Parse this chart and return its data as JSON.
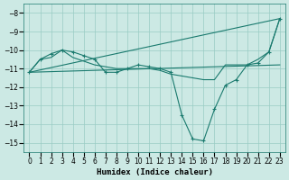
{
  "xlabel": "Humidex (Indice chaleur)",
  "ylabel": "",
  "xlim": [
    -0.5,
    23.5
  ],
  "ylim": [
    -15.5,
    -7.5
  ],
  "yticks": [
    -15,
    -14,
    -13,
    -12,
    -11,
    -10,
    -9,
    -8
  ],
  "xticks": [
    0,
    1,
    2,
    3,
    4,
    5,
    6,
    7,
    8,
    9,
    10,
    11,
    12,
    13,
    14,
    15,
    16,
    17,
    18,
    19,
    20,
    21,
    22,
    23
  ],
  "bg_color": "#cce9e4",
  "line_color": "#1a7a6e",
  "grid_color": "#99ccc4",
  "lines": [
    {
      "x": [
        0,
        1,
        2,
        3,
        4,
        5,
        6,
        7,
        8,
        9,
        10,
        11,
        12,
        13,
        14,
        15,
        16,
        17,
        18,
        19,
        20,
        21,
        22,
        23
      ],
      "y": [
        -11.2,
        -10.5,
        -10.2,
        -10.0,
        -10.1,
        -10.3,
        -10.5,
        -11.2,
        -11.2,
        -11.0,
        -10.8,
        -10.9,
        -11.0,
        -11.2,
        -13.5,
        -14.8,
        -14.9,
        -13.2,
        -11.9,
        -11.6,
        -10.8,
        -10.7,
        -10.1,
        -8.3
      ],
      "marker": true,
      "markersize": 2.5
    },
    {
      "x": [
        0,
        23
      ],
      "y": [
        -11.2,
        -8.3
      ],
      "marker": false,
      "markersize": 0
    },
    {
      "x": [
        0,
        23
      ],
      "y": [
        -11.2,
        -10.8
      ],
      "marker": false,
      "markersize": 0
    },
    {
      "x": [
        0,
        1,
        2,
        3,
        4,
        5,
        6,
        7,
        8,
        9,
        10,
        11,
        12,
        13,
        14,
        15,
        16,
        17,
        18,
        19,
        20,
        21,
        22,
        23
      ],
      "y": [
        -11.2,
        -10.5,
        -10.4,
        -10.0,
        -10.4,
        -10.6,
        -10.8,
        -10.9,
        -11.0,
        -11.0,
        -11.0,
        -11.0,
        -11.1,
        -11.3,
        -11.4,
        -11.5,
        -11.6,
        -11.6,
        -10.8,
        -10.8,
        -10.8,
        -10.5,
        -10.1,
        -8.3
      ],
      "marker": false,
      "markersize": 0
    }
  ]
}
